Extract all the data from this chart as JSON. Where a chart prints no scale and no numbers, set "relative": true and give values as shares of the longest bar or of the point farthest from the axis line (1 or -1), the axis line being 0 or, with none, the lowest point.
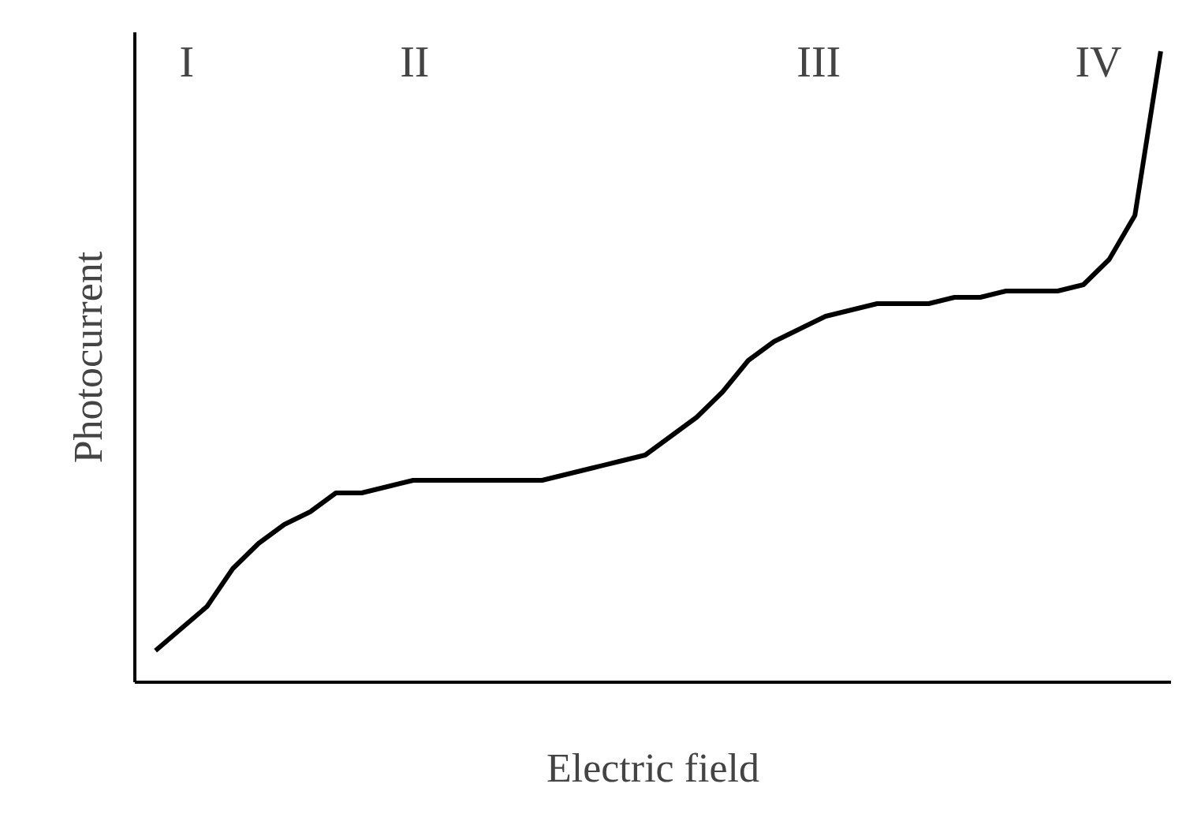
{
  "chart_data": {
    "type": "line",
    "relative": true,
    "xlabel": "Electric field",
    "ylabel": "Photocurrent",
    "color": "#000000",
    "marker": "none",
    "line_style": "solid",
    "categories": [
      null,
      null,
      null,
      null,
      null,
      null,
      null,
      null,
      null,
      null,
      null,
      null,
      null,
      null,
      null,
      null,
      null,
      null,
      null,
      null,
      null,
      null,
      null,
      null,
      null,
      null,
      null,
      null,
      null,
      null,
      null,
      null,
      null,
      null,
      null,
      null,
      null,
      null,
      null,
      null
    ],
    "values": [
      0.05,
      0.085,
      0.12,
      0.18,
      0.22,
      0.25,
      0.27,
      0.3,
      0.3,
      0.31,
      0.32,
      0.32,
      0.32,
      0.32,
      0.32,
      0.32,
      0.33,
      0.34,
      0.35,
      0.36,
      0.39,
      0.42,
      0.46,
      0.51,
      0.54,
      0.56,
      0.58,
      0.59,
      0.6,
      0.6,
      0.6,
      0.61,
      0.61,
      0.62,
      0.62,
      0.62,
      0.63,
      0.67,
      0.74,
      1
    ],
    "annotations": [
      "I",
      "II",
      "III",
      "IV"
    ]
  }
}
